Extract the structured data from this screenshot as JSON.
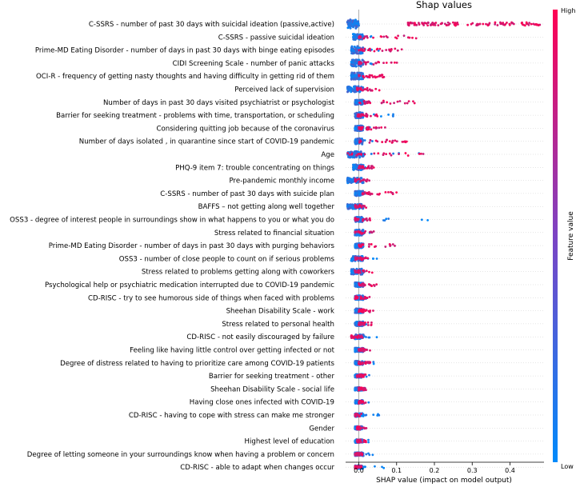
{
  "chart_data": {
    "type": "scatter",
    "title": "Shap values",
    "xlabel": "SHAP value (impact on model output)",
    "ylabel": "",
    "xlim": [
      -0.035,
      0.49
    ],
    "xticks": [
      0.0,
      0.1,
      0.2,
      0.3,
      0.4
    ],
    "xtick_labels": [
      "0.0",
      "0.1",
      "0.2",
      "0.3",
      "0.4"
    ],
    "colorbar": {
      "label": "Feature value",
      "high": "High",
      "low": "Low",
      "colors": [
        "#008afb",
        "#ff0052"
      ]
    },
    "features": [
      {
        "name": "C-SSRS - number of past 30 days with suicidal ideation (passive,active)",
        "low_range": [
          -0.03,
          0.0
        ],
        "high_range": [
          0.13,
          0.48
        ],
        "spread": 1.8
      },
      {
        "name": "C-SSRS - passive suicidal ideation",
        "low_range": [
          -0.015,
          0.05
        ],
        "high_range": [
          0.0,
          0.16
        ],
        "spread": 1.2
      },
      {
        "name": "Prime-MD Eating Disorder - number of days in past 30 days with binge eating episodes",
        "low_range": [
          -0.02,
          0.06
        ],
        "high_range": [
          0.0,
          0.12
        ],
        "spread": 1.6
      },
      {
        "name": "CIDI Screening Scale - number of panic attacks",
        "low_range": [
          -0.02,
          0.06
        ],
        "high_range": [
          0.0,
          0.11
        ],
        "spread": 1.4
      },
      {
        "name": "OCI-R - frequency of getting nasty thoughts and having difficulty in getting rid of them",
        "low_range": [
          -0.02,
          0.03
        ],
        "high_range": [
          0.0,
          0.08
        ],
        "spread": 1.4
      },
      {
        "name": "Perceived lack of supervision",
        "low_range": [
          -0.03,
          0.02
        ],
        "high_range": [
          -0.005,
          0.06
        ],
        "spread": 1.2
      },
      {
        "name": "Number of days in past 30 days visited psychiatrist or psychologist",
        "low_range": [
          -0.01,
          0.03
        ],
        "high_range": [
          0.0,
          0.16
        ],
        "spread": 1.0
      },
      {
        "name": "Barrier for seeking treatment - problems with time, transportation, or scheduling",
        "low_range": [
          -0.01,
          0.1
        ],
        "high_range": [
          -0.005,
          0.05
        ],
        "spread": 1.2
      },
      {
        "name": "Considering quitting  job because of the coronavirus",
        "low_range": [
          -0.01,
          0.04
        ],
        "high_range": [
          0.0,
          0.07
        ],
        "spread": 1.1
      },
      {
        "name": "Number of days isolated , in quarantine since start of COVID-19 pandemic",
        "low_range": [
          -0.01,
          0.04
        ],
        "high_range": [
          0.0,
          0.13
        ],
        "spread": 1.2
      },
      {
        "name": "Age",
        "low_range": [
          -0.03,
          0.18
        ],
        "high_range": [
          -0.03,
          0.19
        ],
        "spread": 1.3
      },
      {
        "name": "PHQ-9 item 7: trouble concentrating on things",
        "low_range": [
          -0.015,
          0.02
        ],
        "high_range": [
          0.0,
          0.04
        ],
        "spread": 1.1
      },
      {
        "name": "Pre-pandemic monthly income",
        "low_range": [
          -0.03,
          0.05
        ],
        "high_range": [
          -0.01,
          0.03
        ],
        "spread": 1.1
      },
      {
        "name": "C-SSRS - number of past 30 days with suicide plan",
        "low_range": [
          -0.01,
          0.02
        ],
        "high_range": [
          0.01,
          0.1
        ],
        "spread": 1.0
      },
      {
        "name": "BAFFS – not getting along well together",
        "low_range": [
          -0.03,
          0.03
        ],
        "high_range": [
          -0.01,
          0.02
        ],
        "spread": 1.0
      },
      {
        "name": "OSS3 - degree of interest people in surroundings show in what happens to you or what you do",
        "low_range": [
          -0.01,
          0.19
        ],
        "high_range": [
          -0.01,
          0.03
        ],
        "spread": 1.1
      },
      {
        "name": "Stress related to financial situation",
        "low_range": [
          -0.01,
          0.03
        ],
        "high_range": [
          -0.01,
          0.04
        ],
        "spread": 1.2
      },
      {
        "name": "Prime-MD Eating Disorder - number of days in past 30 days with purging behaviors",
        "low_range": [
          -0.01,
          0.02
        ],
        "high_range": [
          0.0,
          0.1
        ],
        "spread": 1.0
      },
      {
        "name": "OSS3 - number of close people to count on if serious problems",
        "low_range": [
          -0.02,
          0.05
        ],
        "high_range": [
          -0.01,
          0.03
        ],
        "spread": 1.0
      },
      {
        "name": "Stress related to problems getting along with coworkers",
        "low_range": [
          -0.02,
          0.02
        ],
        "high_range": [
          -0.01,
          0.04
        ],
        "spread": 1.2
      },
      {
        "name": "Psychological help or psychiatric medication interrupted due to COVID-19 pandemic",
        "low_range": [
          -0.01,
          0.02
        ],
        "high_range": [
          0.0,
          0.05
        ],
        "spread": 0.9
      },
      {
        "name": "CD-RISC - try to see humorous side of things when faced with problems",
        "low_range": [
          -0.01,
          0.04
        ],
        "high_range": [
          -0.01,
          0.03
        ],
        "spread": 0.9
      },
      {
        "name": "Sheehan Disability Scale - work",
        "low_range": [
          -0.01,
          0.02
        ],
        "high_range": [
          0.0,
          0.04
        ],
        "spread": 0.9
      },
      {
        "name": "Stress related to personal health",
        "low_range": [
          -0.01,
          0.02
        ],
        "high_range": [
          0.0,
          0.04
        ],
        "spread": 0.9
      },
      {
        "name": "CD-RISC - not easily discouraged by failure",
        "low_range": [
          -0.01,
          0.05
        ],
        "high_range": [
          -0.02,
          0.01
        ],
        "spread": 0.9
      },
      {
        "name": "Feeling like having little control over getting infected or not",
        "low_range": [
          -0.01,
          0.02
        ],
        "high_range": [
          0.0,
          0.03
        ],
        "spread": 0.8
      },
      {
        "name": "Degree of distress related to having to prioritize care among COVID-19 patients",
        "low_range": [
          -0.01,
          0.04
        ],
        "high_range": [
          0.0,
          0.03
        ],
        "spread": 0.8
      },
      {
        "name": "Barrier for seeking treatment - other",
        "low_range": [
          -0.01,
          0.03
        ],
        "high_range": [
          -0.005,
          0.02
        ],
        "spread": 0.7
      },
      {
        "name": "Sheehan Disability Scale - social life",
        "low_range": [
          -0.01,
          0.02
        ],
        "high_range": [
          0.0,
          0.02
        ],
        "spread": 0.7
      },
      {
        "name": "Having close ones infected with COVID-19",
        "low_range": [
          -0.01,
          0.03
        ],
        "high_range": [
          0.0,
          0.02
        ],
        "spread": 0.7
      },
      {
        "name": "CD-RISC - having to cope with stress can make me stronger",
        "low_range": [
          -0.01,
          0.08
        ],
        "high_range": [
          -0.01,
          0.01
        ],
        "spread": 0.7
      },
      {
        "name": "Gender",
        "low_range": [
          -0.01,
          0.01
        ],
        "high_range": [
          -0.005,
          0.02
        ],
        "spread": 0.7
      },
      {
        "name": "Highest level of education",
        "low_range": [
          -0.01,
          0.03
        ],
        "high_range": [
          -0.005,
          0.02
        ],
        "spread": 0.7
      },
      {
        "name": "Degree of letting someone in your surroundings know when having a problem or concern",
        "low_range": [
          -0.01,
          0.04
        ],
        "high_range": [
          -0.01,
          0.01
        ],
        "spread": 0.7
      },
      {
        "name": "CD-RISC - able to adapt when changes occur",
        "low_range": [
          -0.01,
          0.07
        ],
        "high_range": [
          -0.01,
          0.01
        ],
        "spread": 0.7
      }
    ]
  }
}
